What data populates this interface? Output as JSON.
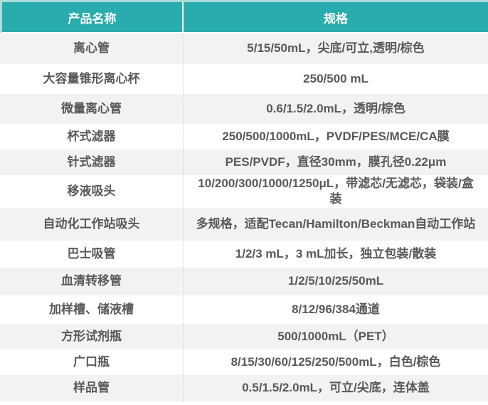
{
  "colors": {
    "accent": "#29ACAD",
    "accent-light": "#AEDCDB",
    "row-alt": "#F2F2F2",
    "text": "#595959",
    "header-text": "#FFFFFF",
    "divider": "#D8D8D8"
  },
  "table": {
    "columns": [
      {
        "label": "产品名称"
      },
      {
        "label": "规格"
      }
    ],
    "rows": [
      {
        "name": "离心管",
        "spec": "5/15/50mL，尖底/可立,透明/棕色"
      },
      {
        "name": "大容量锥形离心杯",
        "spec": "250/500 mL"
      },
      {
        "name": "微量离心管",
        "spec": "0.6/1.5/2.0mL，透明/棕色"
      },
      {
        "name": "杯式滤器",
        "spec": "250/500/1000mL，PVDF/PES/MCE/CA膜"
      },
      {
        "name": "针式滤器",
        "spec": "PES/PVDF，直径30mm，膜孔径0.22μm"
      },
      {
        "name": "移液吸头",
        "spec": "10/200/300/1000/1250μL，带滤芯/无滤芯，袋装/盒装"
      },
      {
        "name": "自动化工作站吸头",
        "spec": "多规格，适配Tecan/Hamilton/Beckman自动工作站"
      },
      {
        "name": "巴士吸管",
        "spec": "1/2/3 mL，3 mL加长，独立包装/散装"
      },
      {
        "name": "血清转移管",
        "spec": "1/2/5/10/25/50mL"
      },
      {
        "name": "加样槽、储液槽",
        "spec": "8/12/96/384通道"
      },
      {
        "name": "方形试剂瓶",
        "spec": "500/1000mL（PET）"
      },
      {
        "name": "广口瓶",
        "spec": "8/15/30/60/125/250/500mL，白色/棕色"
      },
      {
        "name": "样品管",
        "spec": "0.5/1.5/2.0mL，可立/尖底，连体盖"
      }
    ]
  }
}
